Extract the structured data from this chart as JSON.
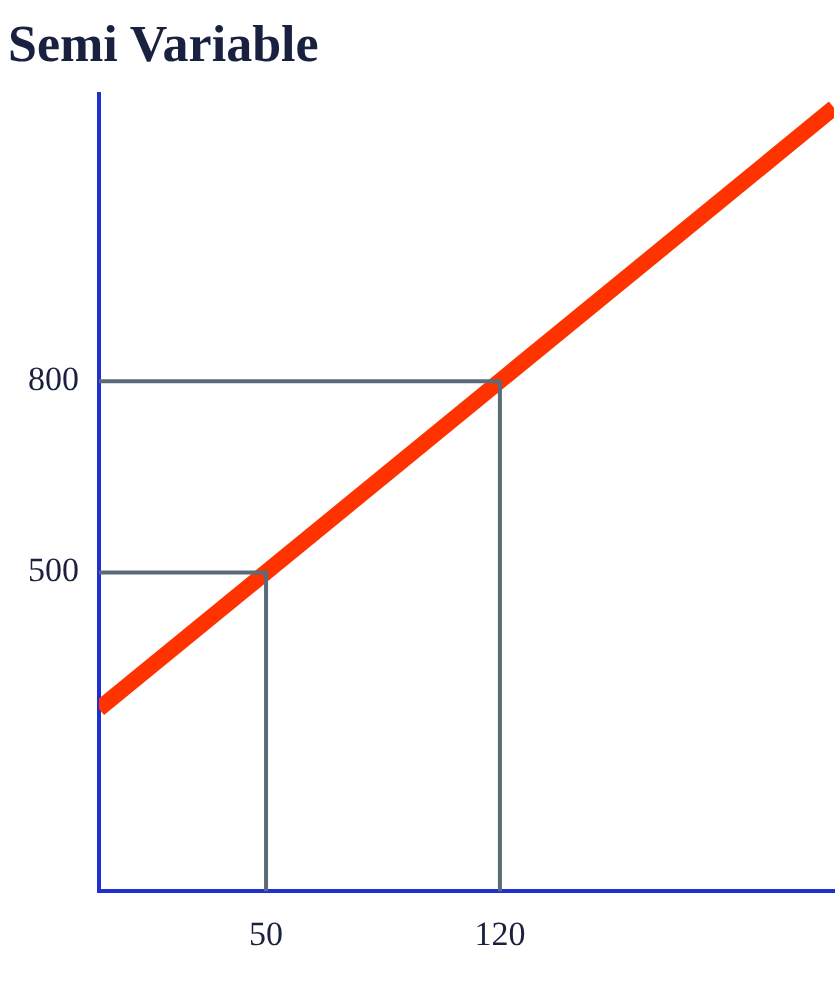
{
  "chart_data": {
    "type": "line",
    "title": "Semi Variable",
    "xlim": [
      0,
      220
    ],
    "ylim": [
      0,
      1250
    ],
    "xticks": [
      50,
      120
    ],
    "yticks": [
      500,
      800
    ],
    "marker": "none",
    "series": [
      {
        "color": "#ff3300",
        "x": [
          0,
          220
        ],
        "values": [
          286,
          1229
        ]
      },
      {
        "color": "#5c6b78",
        "x": [
          0,
          50,
          50
        ],
        "values": [
          500,
          500,
          0
        ]
      },
      {
        "color": "#5c6b78",
        "x": [
          0,
          120,
          120
        ],
        "values": [
          800,
          800,
          0
        ]
      }
    ]
  }
}
